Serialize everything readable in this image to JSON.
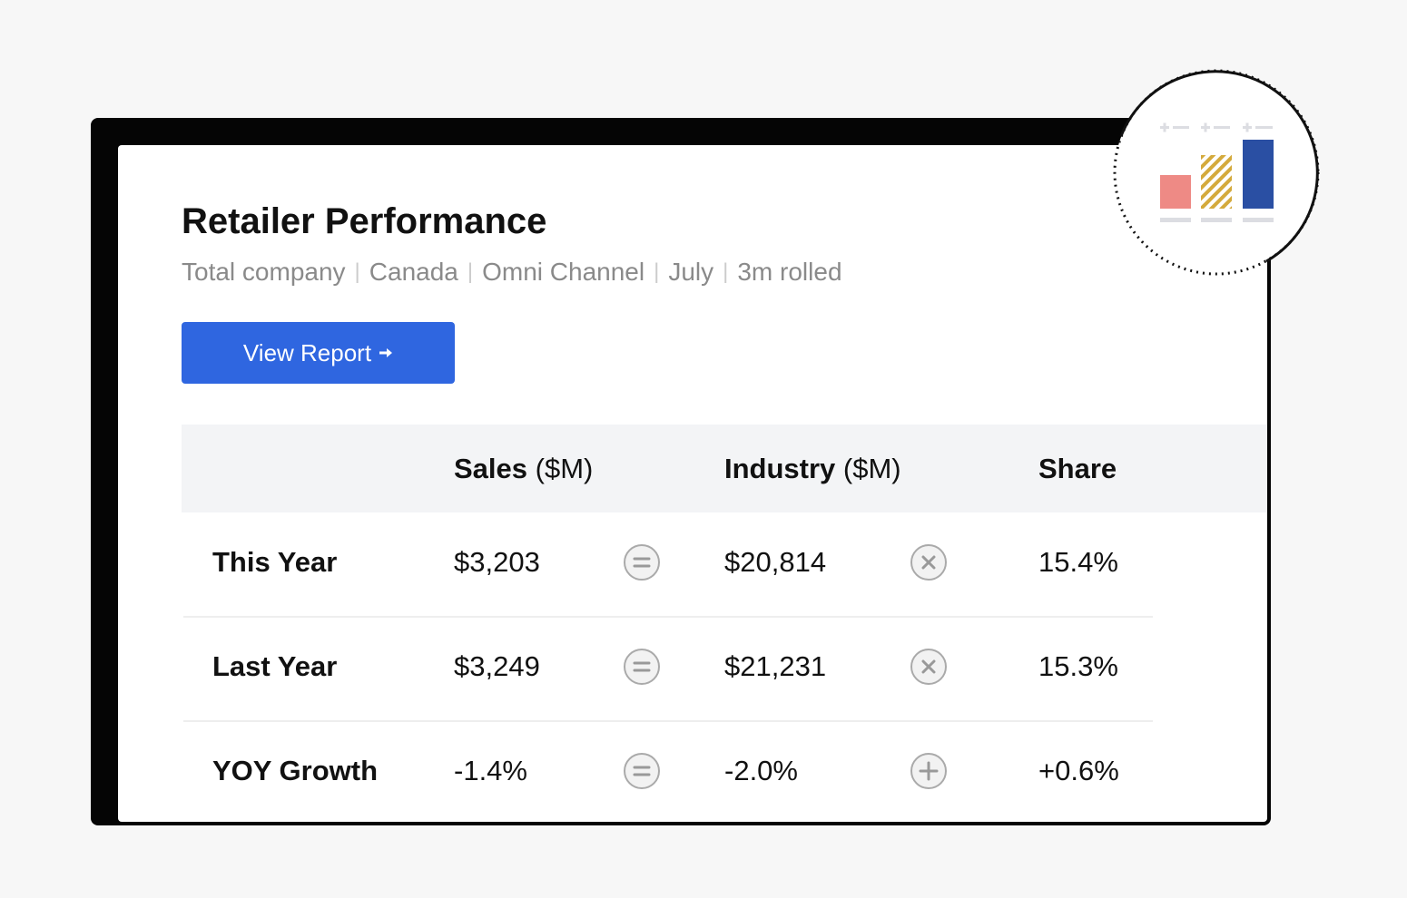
{
  "header": {
    "title": "Retailer Performance",
    "subtitle": [
      "Total company",
      "Canada",
      "Omni Channel",
      "July",
      "3m rolled"
    ],
    "button": "View Report"
  },
  "table": {
    "columns": [
      {
        "name": "Sales",
        "unit": "($M)"
      },
      {
        "name": "Industry",
        "unit": "($M)"
      },
      {
        "name": "Share"
      }
    ],
    "rows": [
      {
        "label": "This Year",
        "values": [
          "$3,203",
          "$20,814",
          "15.4%"
        ]
      },
      {
        "label": "Last Year",
        "values": [
          "$3,249",
          "$21,231",
          "15.3%"
        ]
      },
      {
        "label": "YOY Growth",
        "values": [
          "-1.4%",
          "-2.0%",
          "+0.6%"
        ]
      }
    ]
  }
}
